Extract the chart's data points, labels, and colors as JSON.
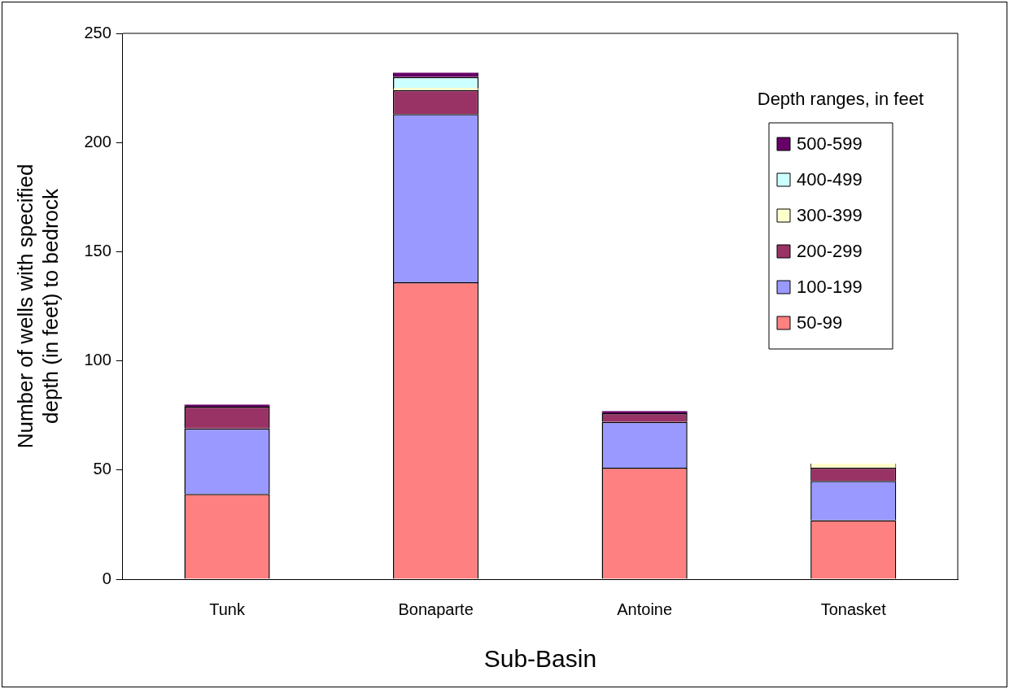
{
  "chart_data": {
    "type": "bar",
    "stacked": true,
    "xlabel": "Sub-Basin",
    "ylabel": "Number of wells with specified depth (in feet) to bedrock",
    "legend_title": "Depth ranges, in feet",
    "legend": "top right",
    "categories": [
      "Tunk",
      "Bonaparte",
      "Antoine",
      "Tonasket"
    ],
    "ylim": [
      0,
      250
    ],
    "yticks": [
      0,
      50,
      100,
      150,
      200,
      250
    ],
    "grid": false,
    "series": [
      {
        "name": "50-99",
        "color": "#ff8080",
        "values": [
          39,
          136,
          51,
          27
        ]
      },
      {
        "name": "100-199",
        "color": "#9999ff",
        "values": [
          30,
          77,
          21,
          18
        ]
      },
      {
        "name": "200-299",
        "color": "#993366",
        "values": [
          10,
          11,
          4,
          6
        ]
      },
      {
        "name": "300-399",
        "color": "#ffffcc",
        "values": [
          null,
          1,
          null,
          2
        ]
      },
      {
        "name": "400-499",
        "color": "#ccffff",
        "values": [
          null,
          5,
          null,
          null
        ]
      },
      {
        "name": "500-599",
        "color": "#660066",
        "values": [
          1,
          2,
          1,
          null
        ]
      }
    ]
  }
}
